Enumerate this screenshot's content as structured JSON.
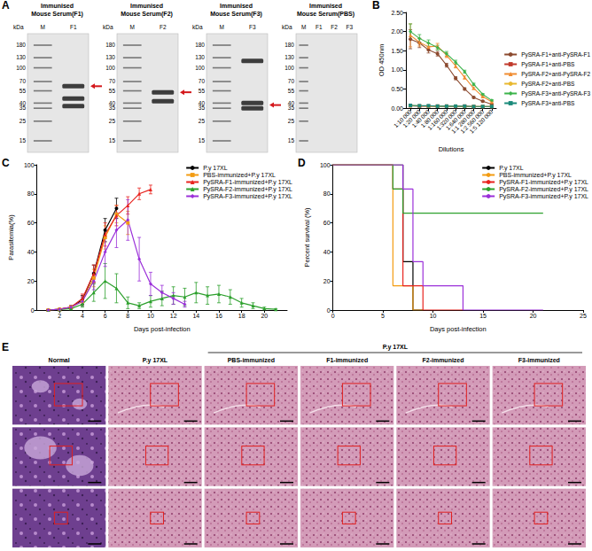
{
  "figure": {
    "A": {
      "panel": "A",
      "unit": "kDa",
      "blots": [
        {
          "title": "Immunised Mouse Serum(F1)",
          "lanes": [
            "M",
            "F1"
          ],
          "markers": [
            180,
            130,
            100,
            70,
            55,
            40,
            35,
            25,
            15
          ],
          "bands": [
            {
              "lane": "F1",
              "kda": 62
            },
            {
              "lane": "F1",
              "kda": 45
            },
            {
              "lane": "F1",
              "kda": 37
            }
          ],
          "arrow_kda": 62
        },
        {
          "title": "Immunised Mouse Serum(F2)",
          "lanes": [
            "M",
            "F2"
          ],
          "markers": [
            180,
            130,
            100,
            70,
            55,
            40,
            35,
            25,
            15
          ],
          "bands": [
            {
              "lane": "F2",
              "kda": 53
            },
            {
              "lane": "F2",
              "kda": 42
            }
          ],
          "arrow_kda": 53
        },
        {
          "title": "Immunised Mouse Serum(F3)",
          "lanes": [
            "M",
            "F3"
          ],
          "markers": [
            180,
            130,
            100,
            70,
            55,
            40,
            35,
            25,
            15
          ],
          "bands": [
            {
              "lane": "F3",
              "kda": 120
            },
            {
              "lane": "F3",
              "kda": 40
            },
            {
              "lane": "F3",
              "kda": 35
            }
          ],
          "arrow_kda": 38
        },
        {
          "title": "Immunised Mouse Serum(PBS)",
          "lanes": [
            "M",
            "F1",
            "F2",
            "F3"
          ],
          "markers": [
            180,
            130,
            100,
            70,
            55,
            40,
            35,
            25,
            15
          ],
          "bands": [],
          "arrow_kda": null
        }
      ]
    },
    "E": {
      "panel": "E",
      "columns": [
        "Normal",
        "P.y 17XL",
        "PBS-immunized",
        "F1-immunized",
        "F2-immunized",
        "F3-immunized"
      ],
      "group": {
        "label": "P.y 17XL",
        "columns": [
          "PBS-immunized",
          "F1-immunized",
          "F2-immunized",
          "F3-immunized"
        ]
      }
    }
  },
  "chart_data": [
    {
      "panel": "B",
      "type": "line",
      "x_label": "Dilutions",
      "y_label": "OD 450nm",
      "categories": [
        "1:10 000",
        "1:20 000",
        "1:40 000",
        "1:80 000",
        "1:160 000",
        "1:320 000",
        "1:640 000",
        "1:1 280 000",
        "1:2 560 000",
        "1:5 120 000"
      ],
      "ylim": [
        0,
        2.5
      ],
      "yticks": [
        {
          "value": 0,
          "label": "0.00"
        },
        {
          "value": 0.5,
          "label": "0.50"
        },
        {
          "value": 1,
          "label": "1.00"
        },
        {
          "value": 1.5,
          "label": "1.50"
        },
        {
          "value": 2,
          "label": "2.00"
        },
        {
          "value": 2.5,
          "label": "2.50"
        }
      ],
      "grid": false,
      "legend": "right",
      "series": [
        {
          "name": "PySRA-F1+anti-PySRA-F1",
          "color": "#8c4a2f",
          "marker": "circle",
          "values": [
            1.8,
            1.7,
            1.52,
            1.42,
            1.12,
            0.78,
            0.5,
            0.28,
            0.18,
            0.1
          ],
          "errors": [
            0.25,
            0.12,
            0.08,
            0.06,
            0.05,
            0.04,
            0.03,
            0.02,
            0.02,
            0.01
          ]
        },
        {
          "name": "PySRA-F1+anti-PBS",
          "color": "#c0392b",
          "marker": "square",
          "values": [
            0.06,
            0.05,
            0.05,
            0.05,
            0.05,
            0.04,
            0.05,
            0.04,
            0.04,
            0.04
          ],
          "errors": [
            0.01,
            0.01,
            0.01,
            0.01,
            0.01,
            0.01,
            0.01,
            0.01,
            0.01,
            0.01
          ]
        },
        {
          "name": "PySRA-F2+anti-PySRA-F2",
          "color": "#f08c30",
          "marker": "triangle",
          "values": [
            1.9,
            1.72,
            1.6,
            1.62,
            1.38,
            1.1,
            0.8,
            0.52,
            0.3,
            0.16
          ],
          "errors": [
            0.3,
            0.1,
            0.08,
            0.07,
            0.06,
            0.05,
            0.04,
            0.03,
            0.02,
            0.02
          ]
        },
        {
          "name": "PySRA-F2+anti-PBS",
          "color": "#e8b830",
          "marker": "circle",
          "values": [
            0.06,
            0.06,
            0.05,
            0.05,
            0.05,
            0.05,
            0.04,
            0.04,
            0.04,
            0.04
          ],
          "errors": [
            0.01,
            0.01,
            0.01,
            0.01,
            0.01,
            0.01,
            0.01,
            0.01,
            0.01,
            0.01
          ]
        },
        {
          "name": "PySRA-F3+anti-PySRA-F3",
          "color": "#3cb44b",
          "marker": "diamond",
          "values": [
            2.0,
            1.82,
            1.7,
            1.58,
            1.42,
            1.2,
            0.95,
            0.62,
            0.36,
            0.2
          ],
          "errors": [
            0.2,
            0.1,
            0.08,
            0.06,
            0.06,
            0.05,
            0.04,
            0.03,
            0.02,
            0.02
          ]
        },
        {
          "name": "PySRA-F3+anti-PBS",
          "color": "#1a8a7a",
          "marker": "square",
          "values": [
            0.07,
            0.06,
            0.06,
            0.05,
            0.05,
            0.05,
            0.05,
            0.04,
            0.04,
            0.04
          ],
          "errors": [
            0.01,
            0.01,
            0.01,
            0.01,
            0.01,
            0.01,
            0.01,
            0.01,
            0.01,
            0.01
          ]
        }
      ]
    },
    {
      "panel": "C",
      "type": "line",
      "x_label": "Days post-infection",
      "y_label": "Parasitemia(%)",
      "x": [
        1,
        2,
        3,
        4,
        5,
        6,
        7,
        8,
        9,
        10,
        11,
        12,
        13,
        14,
        15,
        16,
        17,
        18,
        19,
        20,
        21
      ],
      "xlim": [
        0,
        22
      ],
      "xticks": [
        2,
        4,
        6,
        8,
        10,
        12,
        14,
        16,
        18,
        20
      ],
      "ylim": [
        0,
        100
      ],
      "yticks": [
        0,
        20,
        40,
        60,
        80,
        100
      ],
      "grid": false,
      "legend": "upper right",
      "series": [
        {
          "name": "P.y 17XL",
          "color": "#000000",
          "marker": "circle",
          "values": [
            0,
            0.5,
            2,
            7,
            25,
            55,
            70,
            null,
            null,
            null,
            null,
            null,
            null,
            null,
            null,
            null,
            null,
            null,
            null,
            null,
            null
          ],
          "errors": [
            0,
            0.3,
            1,
            3,
            6,
            8,
            7,
            null,
            null,
            null,
            null,
            null,
            null,
            null,
            null,
            null,
            null,
            null,
            null,
            null,
            null
          ]
        },
        {
          "name": "PBS-immunized+P.y 17XL",
          "color": "#f39c12",
          "marker": "square",
          "values": [
            0,
            0.5,
            2,
            6,
            22,
            50,
            66,
            60,
            null,
            null,
            null,
            null,
            null,
            null,
            null,
            null,
            null,
            null,
            null,
            null,
            null
          ],
          "errors": [
            0,
            0.3,
            1,
            3,
            6,
            8,
            6,
            8,
            null,
            null,
            null,
            null,
            null,
            null,
            null,
            null,
            null,
            null,
            null,
            null,
            null
          ]
        },
        {
          "name": "PySRA-F1-immunized+P.y 17XL",
          "color": "#e8231e",
          "marker": "triangle",
          "values": [
            0,
            0.5,
            2,
            8,
            25,
            52,
            65,
            72,
            80,
            83,
            null,
            null,
            null,
            null,
            null,
            null,
            null,
            null,
            null,
            null,
            null
          ],
          "errors": [
            0,
            0.3,
            1,
            3,
            6,
            8,
            7,
            6,
            4,
            3,
            null,
            null,
            null,
            null,
            null,
            null,
            null,
            null,
            null,
            null,
            null
          ]
        },
        {
          "name": "PySRA-F2-immunized+P.y 17XL",
          "color": "#2ca02c",
          "marker": "triangle",
          "values": [
            0,
            0.3,
            1,
            4,
            12,
            20,
            15,
            5,
            3,
            6,
            8,
            10,
            9,
            12,
            10,
            11,
            9,
            5,
            3,
            1,
            0.5
          ],
          "errors": [
            0,
            0.2,
            0.5,
            2,
            6,
            12,
            10,
            4,
            2,
            4,
            5,
            6,
            6,
            7,
            6,
            6,
            5,
            3,
            2,
            1,
            0.5
          ]
        },
        {
          "name": "PySRA-F3-immunized+P.y 17XL",
          "color": "#9b30d9",
          "marker": "diamond",
          "values": [
            0,
            0.5,
            2,
            6,
            20,
            40,
            55,
            62,
            35,
            18,
            12,
            8,
            4,
            null,
            null,
            null,
            null,
            null,
            null,
            null,
            null
          ],
          "errors": [
            0,
            0.3,
            1,
            3,
            6,
            10,
            12,
            14,
            15,
            8,
            5,
            4,
            2,
            null,
            null,
            null,
            null,
            null,
            null,
            null,
            null
          ]
        }
      ]
    },
    {
      "panel": "D",
      "type": "step",
      "x_label": "Days post-infection",
      "y_label": "Percent survival (%)",
      "x": [
        0,
        6,
        7,
        8,
        9,
        13,
        21
      ],
      "xlim": [
        0,
        25
      ],
      "xticks": [
        0,
        5,
        10,
        15,
        20,
        25
      ],
      "ylim": [
        0,
        100
      ],
      "yticks": [
        0,
        20,
        40,
        60,
        80,
        100
      ],
      "grid": false,
      "legend": "upper right",
      "series": [
        {
          "name": "P.y 17XL",
          "color": "#000000",
          "marker": "none",
          "values": [
            100,
            100,
            33.3,
            0,
            null,
            null,
            null
          ]
        },
        {
          "name": "PBS-immunized+P.y 17XL",
          "color": "#f39c12",
          "marker": "none",
          "values": [
            100,
            16.7,
            16.7,
            0,
            null,
            null,
            null
          ]
        },
        {
          "name": "PySRA-F1-immunized+P.y 17XL",
          "color": "#e8231e",
          "marker": "none",
          "values": [
            100,
            83.3,
            16.7,
            16.7,
            0,
            null,
            null
          ]
        },
        {
          "name": "PySRA-F2-immunized+P.y 17XL",
          "color": "#2ca02c",
          "marker": "none",
          "values": [
            100,
            83.3,
            66.7,
            66.7,
            66.7,
            66.7,
            66.7
          ]
        },
        {
          "name": "PySRA-F3-immunized+P.y 17XL",
          "color": "#9b30d9",
          "marker": "none",
          "values": [
            100,
            100,
            83.3,
            33.3,
            16.7,
            0,
            null
          ]
        }
      ]
    }
  ]
}
